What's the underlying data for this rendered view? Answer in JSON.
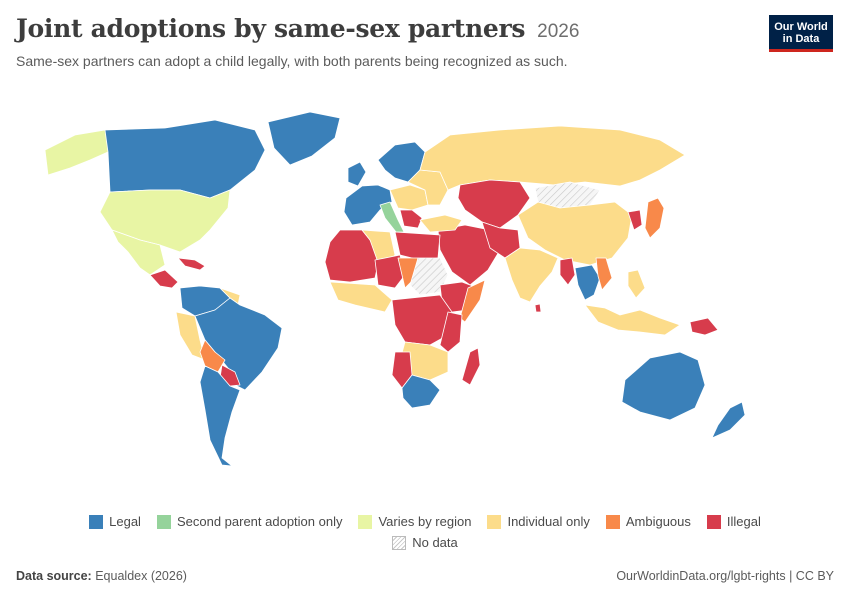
{
  "header": {
    "title": "Joint adoptions by same-sex partners",
    "year": "2026",
    "subtitle": "Same-sex partners can adopt a child legally, with both parents being recognized as such.",
    "logo_line1": "Our World",
    "logo_line2": "in Data"
  },
  "colors": {
    "legal": "#3a80b9",
    "second_parent": "#95d39b",
    "varies": "#e8f5a4",
    "individual": "#fcdc8a",
    "ambiguous": "#f8894a",
    "illegal": "#d73c4c",
    "no_data": "#f0f0f0",
    "border": "#ffffff"
  },
  "legend": {
    "items": [
      {
        "key": "legal",
        "label": "Legal"
      },
      {
        "key": "second_parent",
        "label": "Second parent adoption only"
      },
      {
        "key": "varies",
        "label": "Varies by region"
      },
      {
        "key": "individual",
        "label": "Individual only"
      },
      {
        "key": "ambiguous",
        "label": "Ambiguous"
      },
      {
        "key": "illegal",
        "label": "Illegal"
      }
    ],
    "no_data_label": "No data"
  },
  "footer": {
    "source_label": "Data source:",
    "source_value": "Equaldex (2026)",
    "url": "OurWorldinData.org/lgbt-rights | CC BY"
  }
}
